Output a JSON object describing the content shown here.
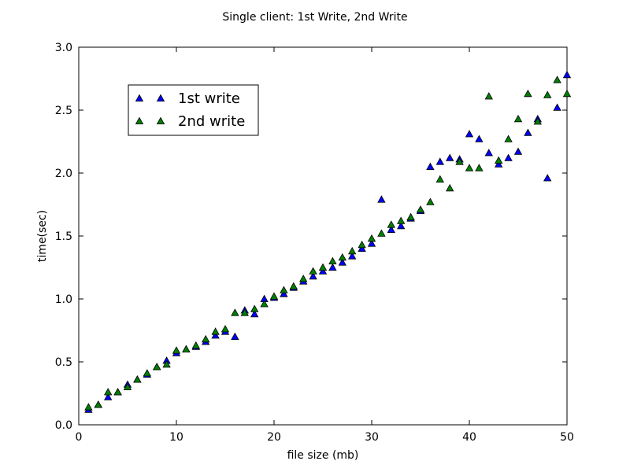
{
  "chart_data": {
    "type": "scatter",
    "title": "Single client: 1st Write,  2nd Write",
    "xlabel": "file size (mb)",
    "ylabel": "time(sec)",
    "xlim": [
      0,
      50
    ],
    "ylim": [
      0.0,
      3.0
    ],
    "xticks": [
      "0",
      "10",
      "20",
      "30",
      "40",
      "50"
    ],
    "yticks": [
      "0.0",
      "0.5",
      "1.0",
      "1.5",
      "2.0",
      "2.5",
      "3.0"
    ],
    "grid": false,
    "legend_position": "top-left",
    "series": [
      {
        "name": "1st write",
        "color": "#0000ff",
        "marker": "triangle",
        "x": [
          1,
          2,
          3,
          4,
          5,
          6,
          7,
          8,
          9,
          10,
          11,
          12,
          13,
          14,
          15,
          16,
          17,
          18,
          19,
          20,
          21,
          22,
          23,
          24,
          25,
          26,
          27,
          28,
          29,
          30,
          31,
          32,
          33,
          34,
          35,
          36,
          37,
          38,
          39,
          40,
          41,
          42,
          43,
          44,
          45,
          46,
          47,
          48,
          49,
          50
        ],
        "y": [
          0.12,
          0.16,
          0.22,
          0.26,
          0.32,
          0.36,
          0.4,
          0.46,
          0.51,
          0.57,
          0.6,
          0.62,
          0.66,
          0.71,
          0.74,
          0.7,
          0.91,
          0.88,
          1.0,
          1.01,
          1.04,
          1.09,
          1.14,
          1.18,
          1.22,
          1.25,
          1.29,
          1.34,
          1.4,
          1.44,
          1.79,
          1.55,
          1.58,
          1.64,
          1.7,
          2.05,
          2.09,
          2.12,
          2.11,
          2.31,
          2.27,
          2.16,
          2.07,
          2.12,
          2.17,
          2.32,
          2.43,
          1.96,
          2.52,
          2.78
        ]
      },
      {
        "name": "2nd write",
        "color": "#008000",
        "marker": "triangle",
        "x": [
          1,
          2,
          3,
          4,
          5,
          6,
          7,
          8,
          9,
          10,
          11,
          12,
          13,
          14,
          15,
          16,
          17,
          18,
          19,
          20,
          21,
          22,
          23,
          24,
          25,
          26,
          27,
          28,
          29,
          30,
          31,
          32,
          33,
          34,
          35,
          36,
          37,
          38,
          39,
          40,
          41,
          42,
          43,
          44,
          45,
          46,
          47,
          48,
          49,
          50
        ],
        "y": [
          0.14,
          0.16,
          0.26,
          0.26,
          0.3,
          0.36,
          0.41,
          0.46,
          0.48,
          0.59,
          0.6,
          0.63,
          0.68,
          0.74,
          0.76,
          0.89,
          0.89,
          0.92,
          0.96,
          1.02,
          1.07,
          1.1,
          1.16,
          1.22,
          1.25,
          1.3,
          1.33,
          1.38,
          1.43,
          1.48,
          1.52,
          1.59,
          1.62,
          1.65,
          1.71,
          1.77,
          1.95,
          1.88,
          2.09,
          2.04,
          2.04,
          2.61,
          2.1,
          2.27,
          2.43,
          2.63,
          2.41,
          2.62,
          2.74,
          2.63
        ]
      }
    ]
  }
}
